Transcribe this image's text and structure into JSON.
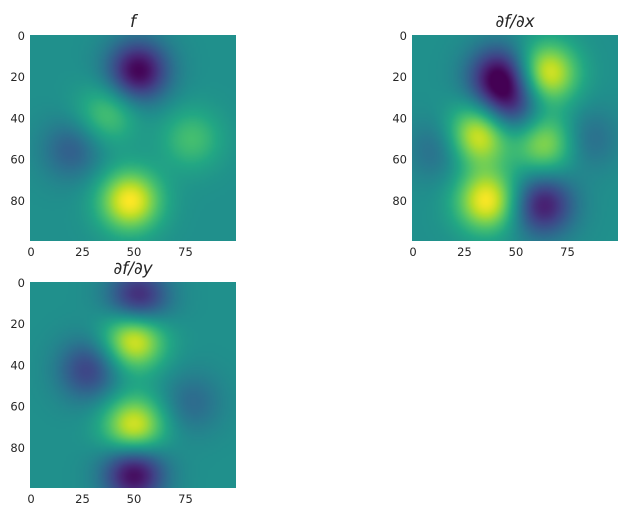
{
  "chart_data": [
    {
      "type": "heatmap",
      "title": "f",
      "colormap": "viridis",
      "grid": false,
      "x_ticks": [
        0,
        25,
        50,
        75
      ],
      "y_ticks": [
        0,
        20,
        40,
        60,
        80
      ],
      "xlim": [
        0,
        99
      ],
      "ylim": [
        99,
        0
      ],
      "color_range": [
        -1,
        1
      ],
      "features": [
        {
          "x": 52,
          "y": 17,
          "value": -1.0
        },
        {
          "x": 48,
          "y": 80,
          "value": 1.0
        },
        {
          "x": 37,
          "y": 38,
          "value": 0.45
        },
        {
          "x": 78,
          "y": 50,
          "value": 0.4
        },
        {
          "x": 20,
          "y": 55,
          "value": -0.4
        }
      ]
    },
    {
      "type": "heatmap",
      "title": "∂f/∂x",
      "colormap": "viridis",
      "grid": false,
      "x_ticks": [
        0,
        25,
        50,
        75
      ],
      "y_ticks": [
        0,
        20,
        40,
        60,
        80
      ],
      "xlim": [
        0,
        99
      ],
      "ylim": [
        99,
        0
      ],
      "color_range": [
        -1,
        1
      ],
      "features": [
        {
          "x": 42,
          "y": 20,
          "value": -1.0
        },
        {
          "x": 65,
          "y": 18,
          "value": 0.95
        },
        {
          "x": 32,
          "y": 48,
          "value": 0.95
        },
        {
          "x": 36,
          "y": 80,
          "value": 1.0
        },
        {
          "x": 64,
          "y": 52,
          "value": 0.7
        },
        {
          "x": 63,
          "y": 82,
          "value": -0.85
        },
        {
          "x": 48,
          "y": 35,
          "value": -0.6
        },
        {
          "x": 12,
          "y": 55,
          "value": -0.3
        },
        {
          "x": 85,
          "y": 50,
          "value": -0.3
        }
      ]
    },
    {
      "type": "heatmap",
      "title": "∂f/∂y",
      "colormap": "viridis",
      "grid": false,
      "x_ticks": [
        0,
        25,
        50,
        75
      ],
      "y_ticks": [
        0,
        20,
        40,
        60,
        80
      ],
      "xlim": [
        0,
        99
      ],
      "ylim": [
        99,
        0
      ],
      "color_range": [
        -1,
        1
      ],
      "features": [
        {
          "x": 52,
          "y": 8,
          "value": -0.85
        },
        {
          "x": 50,
          "y": 27,
          "value": 1.0
        },
        {
          "x": 28,
          "y": 42,
          "value": -0.6
        },
        {
          "x": 50,
          "y": 70,
          "value": 0.95
        },
        {
          "x": 50,
          "y": 92,
          "value": -1.0
        },
        {
          "x": 78,
          "y": 58,
          "value": -0.3
        }
      ]
    }
  ]
}
